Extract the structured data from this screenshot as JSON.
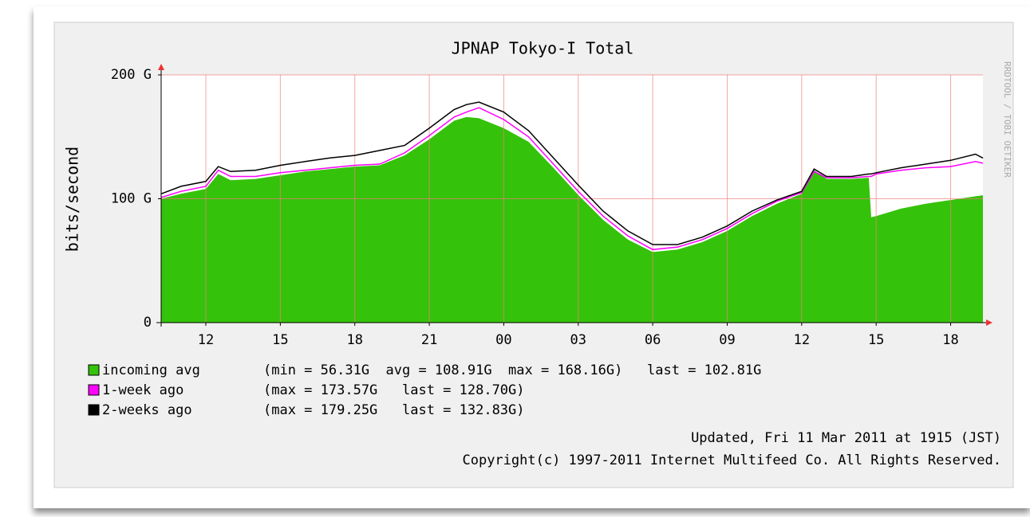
{
  "chart_data": {
    "type": "rrd",
    "title": "JPNAP Tokyo-I Total",
    "ylabel": "bits/second",
    "watermark": "RRDTOOL / TOBI OETIKER",
    "x": [
      10.2,
      11,
      12,
      12.5,
      13,
      14,
      15,
      16,
      17,
      18,
      19,
      20,
      21,
      22,
      22.5,
      23,
      24,
      25,
      26,
      27,
      28,
      29,
      30,
      31,
      32,
      33,
      34,
      35,
      36,
      36.5,
      37,
      38,
      38.7,
      38.8,
      39,
      40,
      41,
      42,
      43,
      43.3
    ],
    "xlim": [
      10.2,
      43.3
    ],
    "xticks": [
      12,
      15,
      18,
      {
        "value": 21,
        "label": "21"
      },
      {
        "value": 24,
        "label": "00"
      },
      {
        "value": 27,
        "label": "03"
      },
      {
        "value": 30,
        "label": "06"
      },
      {
        "value": 33,
        "label": "09"
      },
      {
        "value": 36,
        "label": "12"
      },
      {
        "value": 39,
        "label": "15"
      },
      {
        "value": 42,
        "label": "18"
      }
    ],
    "ylim": [
      0,
      200
    ],
    "yticks": [
      0,
      {
        "value": 100,
        "label": "100 G"
      },
      {
        "value": 200,
        "label": "200 G"
      }
    ],
    "grid": true,
    "series": [
      {
        "name": "incoming avg",
        "style": "area",
        "color": "#35c20a",
        "stats": "(min = 56.31G  avg = 108.91G  max = 168.16G)   last = 102.81G",
        "values": [
          100,
          104,
          108,
          120,
          115,
          116,
          119,
          122,
          124,
          126,
          127,
          135,
          148,
          163,
          166,
          165,
          157,
          146,
          125,
          103,
          83,
          67,
          57,
          59,
          65,
          74,
          86,
          96,
          104,
          123,
          116,
          116,
          117,
          85,
          86,
          92,
          96,
          99,
          102,
          102.81
        ]
      },
      {
        "name": "1-week ago",
        "style": "line",
        "color": "#ff00ff",
        "stats": "(max = 173.57G   last = 128.70G)",
        "values": [
          101,
          106,
          110,
          123,
          118,
          118,
          121,
          123,
          125,
          127,
          128,
          137,
          151,
          166,
          170,
          173.5,
          164,
          150,
          128,
          106,
          86,
          70,
          59,
          61,
          67,
          76,
          88,
          98,
          105,
          122,
          117,
          117,
          118,
          118,
          120,
          123,
          125,
          126,
          130,
          128.7
        ]
      },
      {
        "name": "2-weeks ago",
        "style": "line",
        "color": "#000000",
        "stats": "(max = 179.25G   last = 132.83G)",
        "values": [
          104,
          110,
          114,
          126,
          122,
          123,
          127,
          130,
          133,
          135,
          139,
          143,
          157,
          172,
          176,
          178,
          170,
          155,
          133,
          111,
          90,
          74,
          63,
          63,
          69,
          78,
          90,
          99,
          106,
          124,
          118,
          118,
          120,
          120,
          121,
          125,
          128,
          131,
          136,
          132.83
        ]
      }
    ],
    "updated": "Updated, Fri 11 Mar 2011 at 1915 (JST)",
    "copyright": "Copyright(c) 1997-2011 Internet Multifeed Co. All Rights Reserved."
  }
}
